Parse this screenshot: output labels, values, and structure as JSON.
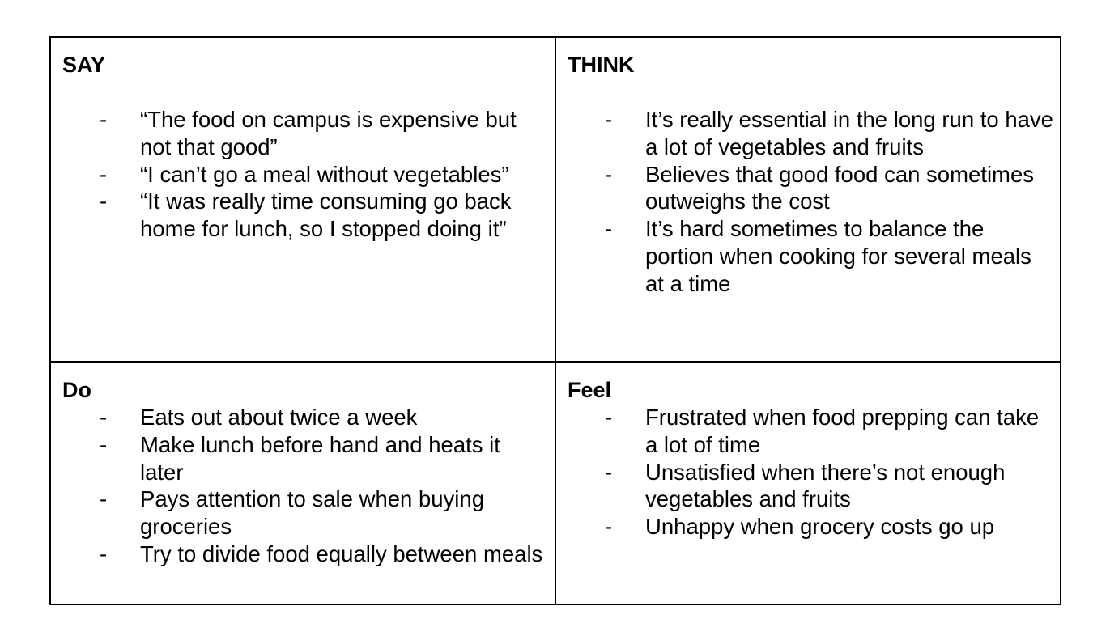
{
  "say": {
    "heading": "SAY",
    "items": [
      "“The food on campus is expensive but not that good”",
      "“I can’t go a meal without vegetables”",
      "“It was really time consuming go back home for lunch, so I stopped doing it”"
    ]
  },
  "think": {
    "heading": "THINK",
    "items": [
      "It’s really essential in the long run to have a lot of vegetables and fruits",
      "Believes that good food can sometimes outweighs the cost",
      "It’s hard sometimes to balance the portion when cooking for several meals at a time"
    ]
  },
  "do": {
    "heading": "Do",
    "items": [
      "Eats out about twice a week",
      "Make lunch before hand and heats it later",
      "Pays attention to sale when buying groceries",
      "Try to divide food equally between meals"
    ]
  },
  "feel": {
    "heading": "Feel",
    "items": [
      "Frustrated when food prepping can take a lot of time",
      "Unsatisfied when there’s not enough vegetables and fruits",
      "Unhappy when grocery costs go up"
    ]
  },
  "bullet": "-"
}
